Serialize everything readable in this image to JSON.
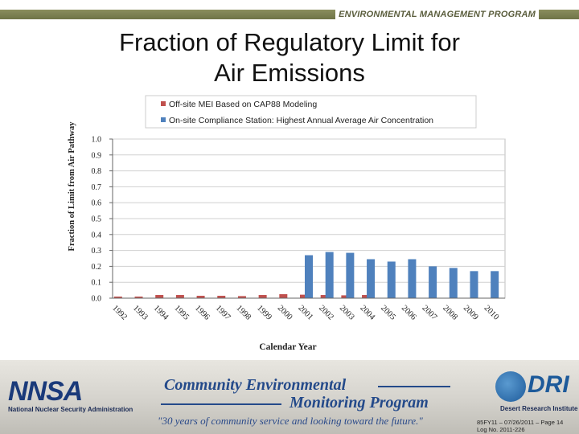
{
  "header": {
    "program_label": "ENVIRONMENTAL MANAGEMENT PROGRAM"
  },
  "slide": {
    "title_line1": "Fraction of Regulatory Limit for",
    "title_line2": "Air Emissions"
  },
  "chart_data": {
    "type": "bar",
    "xlabel": "Calendar Year",
    "ylabel": "Fraction of Limit from Air Pathway",
    "ylim": [
      0,
      1.0
    ],
    "yticks": [
      "0.0",
      "0.1",
      "0.2",
      "0.3",
      "0.4",
      "0.5",
      "0.6",
      "0.7",
      "0.8",
      "0.9",
      "1.0"
    ],
    "grid": true,
    "legend_position": "top",
    "categories": [
      "1992",
      "1993",
      "1994",
      "1995",
      "1996",
      "1997",
      "1998",
      "1999",
      "2000",
      "2001",
      "2002",
      "2003",
      "2004",
      "2005",
      "2006",
      "2007",
      "2008",
      "2009",
      "2010"
    ],
    "series": [
      {
        "name": "Off-site MEI Based on CAP88 Modeling",
        "color": "#c0504d",
        "values": [
          0.01,
          0.01,
          0.02,
          0.02,
          0.015,
          0.015,
          0.013,
          0.02,
          0.025,
          0.022,
          0.02,
          0.018,
          0.02,
          null,
          null,
          null,
          null,
          null,
          null
        ]
      },
      {
        "name": "On-site Compliance Station: Highest Annual Average Air Concentration",
        "color": "#4f81bd",
        "values": [
          null,
          null,
          null,
          null,
          null,
          null,
          null,
          null,
          null,
          0.27,
          0.29,
          0.285,
          0.245,
          0.23,
          0.245,
          0.2,
          0.19,
          0.17,
          0.17
        ]
      }
    ]
  },
  "footer": {
    "nnsa": "NNSA",
    "nnsa_full": "National Nuclear Security Administration",
    "program_line1": "Community Environmental",
    "program_line2": "Monitoring Program",
    "tagline": "\"30 years of community service and looking toward the future.\"",
    "dri": "DRI",
    "dri_full": "Desert Research Institute",
    "page_info_line1": "85FY11 – 07/26/2011 – Page 14",
    "page_info_line2": "Log No. 2011-226"
  }
}
